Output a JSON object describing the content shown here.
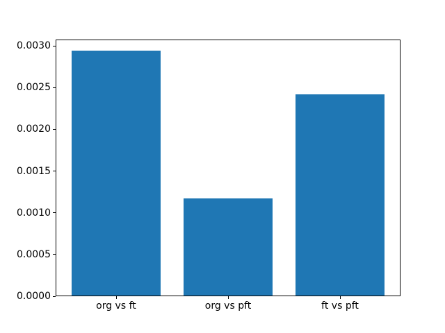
{
  "figure": {
    "background_color": "#ffffff",
    "spine_color": "#000000",
    "tick_color": "#000000",
    "text_color": "#000000"
  },
  "chart_data": {
    "type": "bar",
    "title": "",
    "xlabel": "",
    "ylabel": "",
    "categories": [
      "org vs ft",
      "org vs pft",
      "ft vs pft"
    ],
    "values": [
      0.00293,
      0.00116,
      0.00241
    ],
    "bar_color": "#1f77b4",
    "ylim": [
      0,
      0.003075
    ],
    "yticks": [
      0.0,
      0.0005,
      0.001,
      0.0015,
      0.002,
      0.0025,
      0.003
    ],
    "ytick_labels": [
      "0.0000",
      "0.0005",
      "0.0010",
      "0.0015",
      "0.0020",
      "0.0025",
      "0.0030"
    ],
    "bar_width_fraction": 0.8,
    "x_margin": 0.05,
    "grid": false,
    "legend": false
  }
}
